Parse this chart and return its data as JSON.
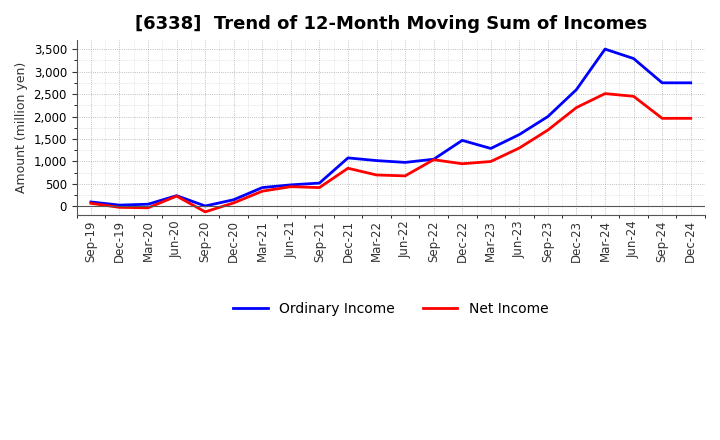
{
  "title": "[6338]  Trend of 12-Month Moving Sum of Incomes",
  "ylabel": "Amount (million yen)",
  "x_labels": [
    "Sep-19",
    "Dec-19",
    "Mar-20",
    "Jun-20",
    "Sep-20",
    "Dec-20",
    "Mar-21",
    "Jun-21",
    "Sep-21",
    "Dec-21",
    "Mar-22",
    "Jun-22",
    "Sep-22",
    "Dec-22",
    "Mar-23",
    "Jun-23",
    "Sep-23",
    "Dec-23",
    "Mar-24",
    "Jun-24",
    "Sep-24",
    "Dec-24"
  ],
  "ordinary_income": [
    100,
    30,
    50,
    240,
    10,
    150,
    420,
    480,
    520,
    1080,
    1020,
    980,
    1050,
    1470,
    1290,
    1600,
    2000,
    2600,
    3500,
    3290,
    2750,
    2750
  ],
  "net_income": [
    70,
    -20,
    -30,
    230,
    -120,
    80,
    340,
    440,
    420,
    850,
    700,
    680,
    1040,
    950,
    1000,
    1300,
    1700,
    2200,
    2510,
    2450,
    1960,
    1960
  ],
  "ordinary_income_color": "#0000FF",
  "net_income_color": "#FF0000",
  "background_color": "#FFFFFF",
  "grid_color": "#888888",
  "ylim": [
    -200,
    3700
  ],
  "yticks": [
    0,
    500,
    1000,
    1500,
    2000,
    2500,
    3000,
    3500
  ],
  "legend_ordinary": "Ordinary Income",
  "legend_net": "Net Income",
  "line_width": 2.0,
  "title_fontsize": 13,
  "ylabel_fontsize": 9,
  "tick_fontsize": 8.5
}
